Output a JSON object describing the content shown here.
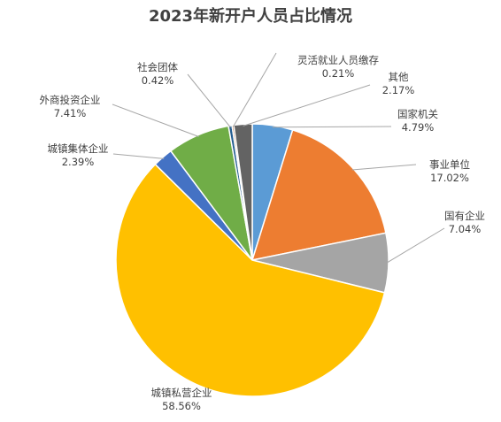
{
  "chart_data": {
    "type": "pie",
    "title": "2023年新开户人员占比情况",
    "start_angle_deg": 0,
    "direction": "clockwise",
    "label_format": "name-above-percent",
    "legend": "none",
    "slices": [
      {
        "name": "国家机关",
        "value": 4.79,
        "label": "4.79%",
        "color": "#5b9bd5"
      },
      {
        "name": "事业单位",
        "value": 17.02,
        "label": "17.02%",
        "color": "#ed7d31"
      },
      {
        "name": "国有企业",
        "value": 7.04,
        "label": "7.04%",
        "color": "#a5a5a5"
      },
      {
        "name": "城镇私营企业",
        "value": 58.56,
        "label": "58.56%",
        "color": "#ffc000"
      },
      {
        "name": "城镇集体企业",
        "value": 2.39,
        "label": "2.39%",
        "color": "#4472c4"
      },
      {
        "name": "外商投资企业",
        "value": 7.41,
        "label": "7.41%",
        "color": "#70ad47"
      },
      {
        "name": "社会团体",
        "value": 0.42,
        "label": "0.42%",
        "color": "#255e91"
      },
      {
        "name": "灵活就业人员缴存",
        "value": 0.21,
        "label": "0.21%",
        "color": "#9e480e"
      },
      {
        "name": "其他",
        "value": 2.17,
        "label": "2.17%",
        "color": "#636363"
      }
    ]
  }
}
